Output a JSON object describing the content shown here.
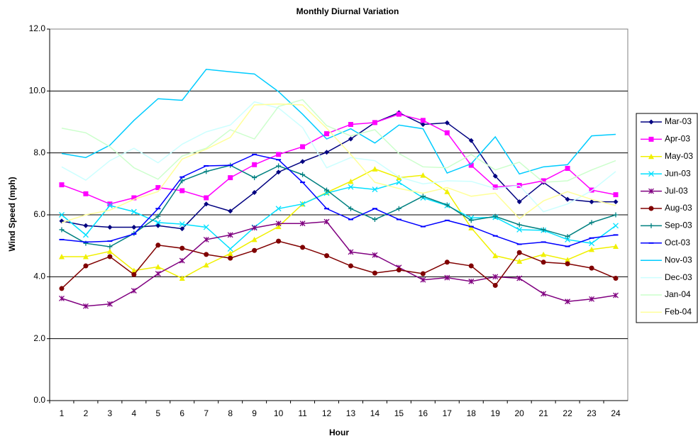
{
  "chart_data": {
    "type": "line",
    "title": "Monthly Diurnal Variation",
    "x_label": "Hour",
    "y_label": "Wind Speed (mph)",
    "categories": [
      1,
      2,
      3,
      4,
      5,
      6,
      7,
      8,
      9,
      10,
      11,
      12,
      13,
      14,
      15,
      16,
      17,
      18,
      19,
      20,
      21,
      22,
      23,
      24
    ],
    "ylim": [
      0,
      12
    ],
    "yticks": [
      {
        "value": 0,
        "label": "0.0"
      },
      {
        "value": 2,
        "label": "2.0"
      },
      {
        "value": 4,
        "label": "4.0"
      },
      {
        "value": 6,
        "label": "6.0"
      },
      {
        "value": 8,
        "label": "8.0"
      },
      {
        "value": 10,
        "label": "10.0"
      },
      {
        "value": 12,
        "label": "12.0"
      }
    ],
    "grid": true,
    "legend": "right",
    "series": [
      {
        "name": "Mar-03",
        "color": "#000080",
        "marker": "diamond",
        "values": [
          5.8,
          5.65,
          5.6,
          5.6,
          5.65,
          5.55,
          6.35,
          6.12,
          6.72,
          7.38,
          7.72,
          8.02,
          8.45,
          8.98,
          9.3,
          8.92,
          8.97,
          8.4,
          7.25,
          6.42,
          7.05,
          6.5,
          6.42,
          6.42
        ]
      },
      {
        "name": "Apr-03",
        "color": "#ff00ff",
        "marker": "square",
        "values": [
          6.97,
          6.68,
          6.35,
          6.55,
          6.88,
          6.78,
          6.55,
          7.2,
          7.62,
          7.95,
          8.2,
          8.62,
          8.92,
          8.98,
          9.25,
          9.05,
          8.65,
          7.6,
          6.9,
          6.95,
          7.1,
          7.5,
          6.8,
          6.65
        ]
      },
      {
        "name": "May-03",
        "color": "#f0f000",
        "marker": "triangle",
        "values": [
          4.65,
          4.65,
          4.82,
          4.2,
          4.32,
          3.95,
          4.38,
          4.75,
          5.2,
          5.62,
          6.35,
          6.72,
          7.08,
          7.48,
          7.2,
          7.28,
          6.75,
          5.58,
          4.68,
          4.5,
          4.72,
          4.55,
          4.88,
          4.98
        ]
      },
      {
        "name": "Jun-03",
        "color": "#00e0ff",
        "marker": "x",
        "values": [
          6.0,
          5.35,
          6.3,
          6.1,
          5.75,
          5.7,
          5.6,
          4.9,
          5.6,
          6.2,
          6.35,
          6.7,
          6.9,
          6.82,
          7.05,
          6.55,
          6.3,
          5.9,
          5.92,
          5.52,
          5.5,
          5.2,
          5.08,
          5.65
        ]
      },
      {
        "name": "Jul-03",
        "color": "#800080",
        "marker": "star",
        "values": [
          3.3,
          3.05,
          3.12,
          3.55,
          4.1,
          4.52,
          5.2,
          5.35,
          5.58,
          5.72,
          5.72,
          5.78,
          4.8,
          4.7,
          4.3,
          3.9,
          3.97,
          3.85,
          4.0,
          3.95,
          3.45,
          3.2,
          3.28,
          3.4
        ]
      },
      {
        "name": "Aug-03",
        "color": "#800000",
        "marker": "circle",
        "values": [
          3.62,
          4.35,
          4.65,
          4.07,
          5.02,
          4.92,
          4.72,
          4.6,
          4.85,
          5.15,
          4.95,
          4.68,
          4.35,
          4.12,
          4.22,
          4.1,
          4.47,
          4.35,
          3.72,
          4.78,
          4.47,
          4.42,
          4.28,
          3.95
        ]
      },
      {
        "name": "Sep-03",
        "color": "#008080",
        "marker": "plus",
        "values": [
          5.52,
          5.08,
          4.97,
          5.4,
          5.95,
          7.1,
          7.4,
          7.6,
          7.2,
          7.58,
          7.3,
          6.8,
          6.2,
          5.85,
          6.2,
          6.6,
          6.32,
          5.82,
          5.95,
          5.68,
          5.52,
          5.3,
          5.75,
          6.0
        ]
      },
      {
        "name": "Oct-03",
        "color": "#0000ff",
        "marker": "dash",
        "values": [
          5.2,
          5.12,
          5.15,
          5.38,
          6.2,
          7.22,
          7.58,
          7.6,
          7.95,
          7.78,
          7.05,
          6.2,
          5.85,
          6.2,
          5.85,
          5.62,
          5.82,
          5.62,
          5.32,
          5.05,
          5.12,
          4.98,
          5.25,
          5.35
        ]
      },
      {
        "name": "Nov-03",
        "color": "#00ccff",
        "marker": "none",
        "values": [
          7.98,
          7.85,
          8.25,
          9.05,
          9.75,
          9.7,
          10.7,
          10.62,
          10.55,
          9.98,
          9.25,
          8.45,
          8.78,
          8.32,
          8.9,
          8.78,
          7.35,
          7.65,
          8.52,
          7.32,
          7.55,
          7.62,
          8.55,
          8.6
        ]
      },
      {
        "name": "Dec-03",
        "color": "#ccffff",
        "marker": "none",
        "values": [
          7.55,
          7.12,
          7.75,
          8.15,
          7.68,
          8.28,
          8.68,
          8.9,
          9.65,
          9.45,
          8.82,
          7.52,
          7.85,
          7.75,
          7.22,
          7.0,
          7.1,
          7.08,
          6.85,
          6.95,
          6.1,
          6.35,
          6.78,
          7.4
        ]
      },
      {
        "name": "Jan-04",
        "color": "#ccffcc",
        "marker": "none",
        "values": [
          8.8,
          8.65,
          8.2,
          7.52,
          7.15,
          7.9,
          8.15,
          8.75,
          8.45,
          9.5,
          9.72,
          8.88,
          8.55,
          8.75,
          7.98,
          7.55,
          7.52,
          7.95,
          7.45,
          7.7,
          7.05,
          7.1,
          7.45,
          7.75
        ]
      },
      {
        "name": "Feb-04",
        "color": "#ffff99",
        "marker": "none",
        "values": [
          5.75,
          6.0,
          6.15,
          6.5,
          6.75,
          7.8,
          8.12,
          8.5,
          9.55,
          9.58,
          9.55,
          8.8,
          7.95,
          7.05,
          6.85,
          6.7,
          6.88,
          6.6,
          6.7,
          5.88,
          6.45,
          6.75,
          6.5,
          6.3
        ]
      }
    ]
  }
}
